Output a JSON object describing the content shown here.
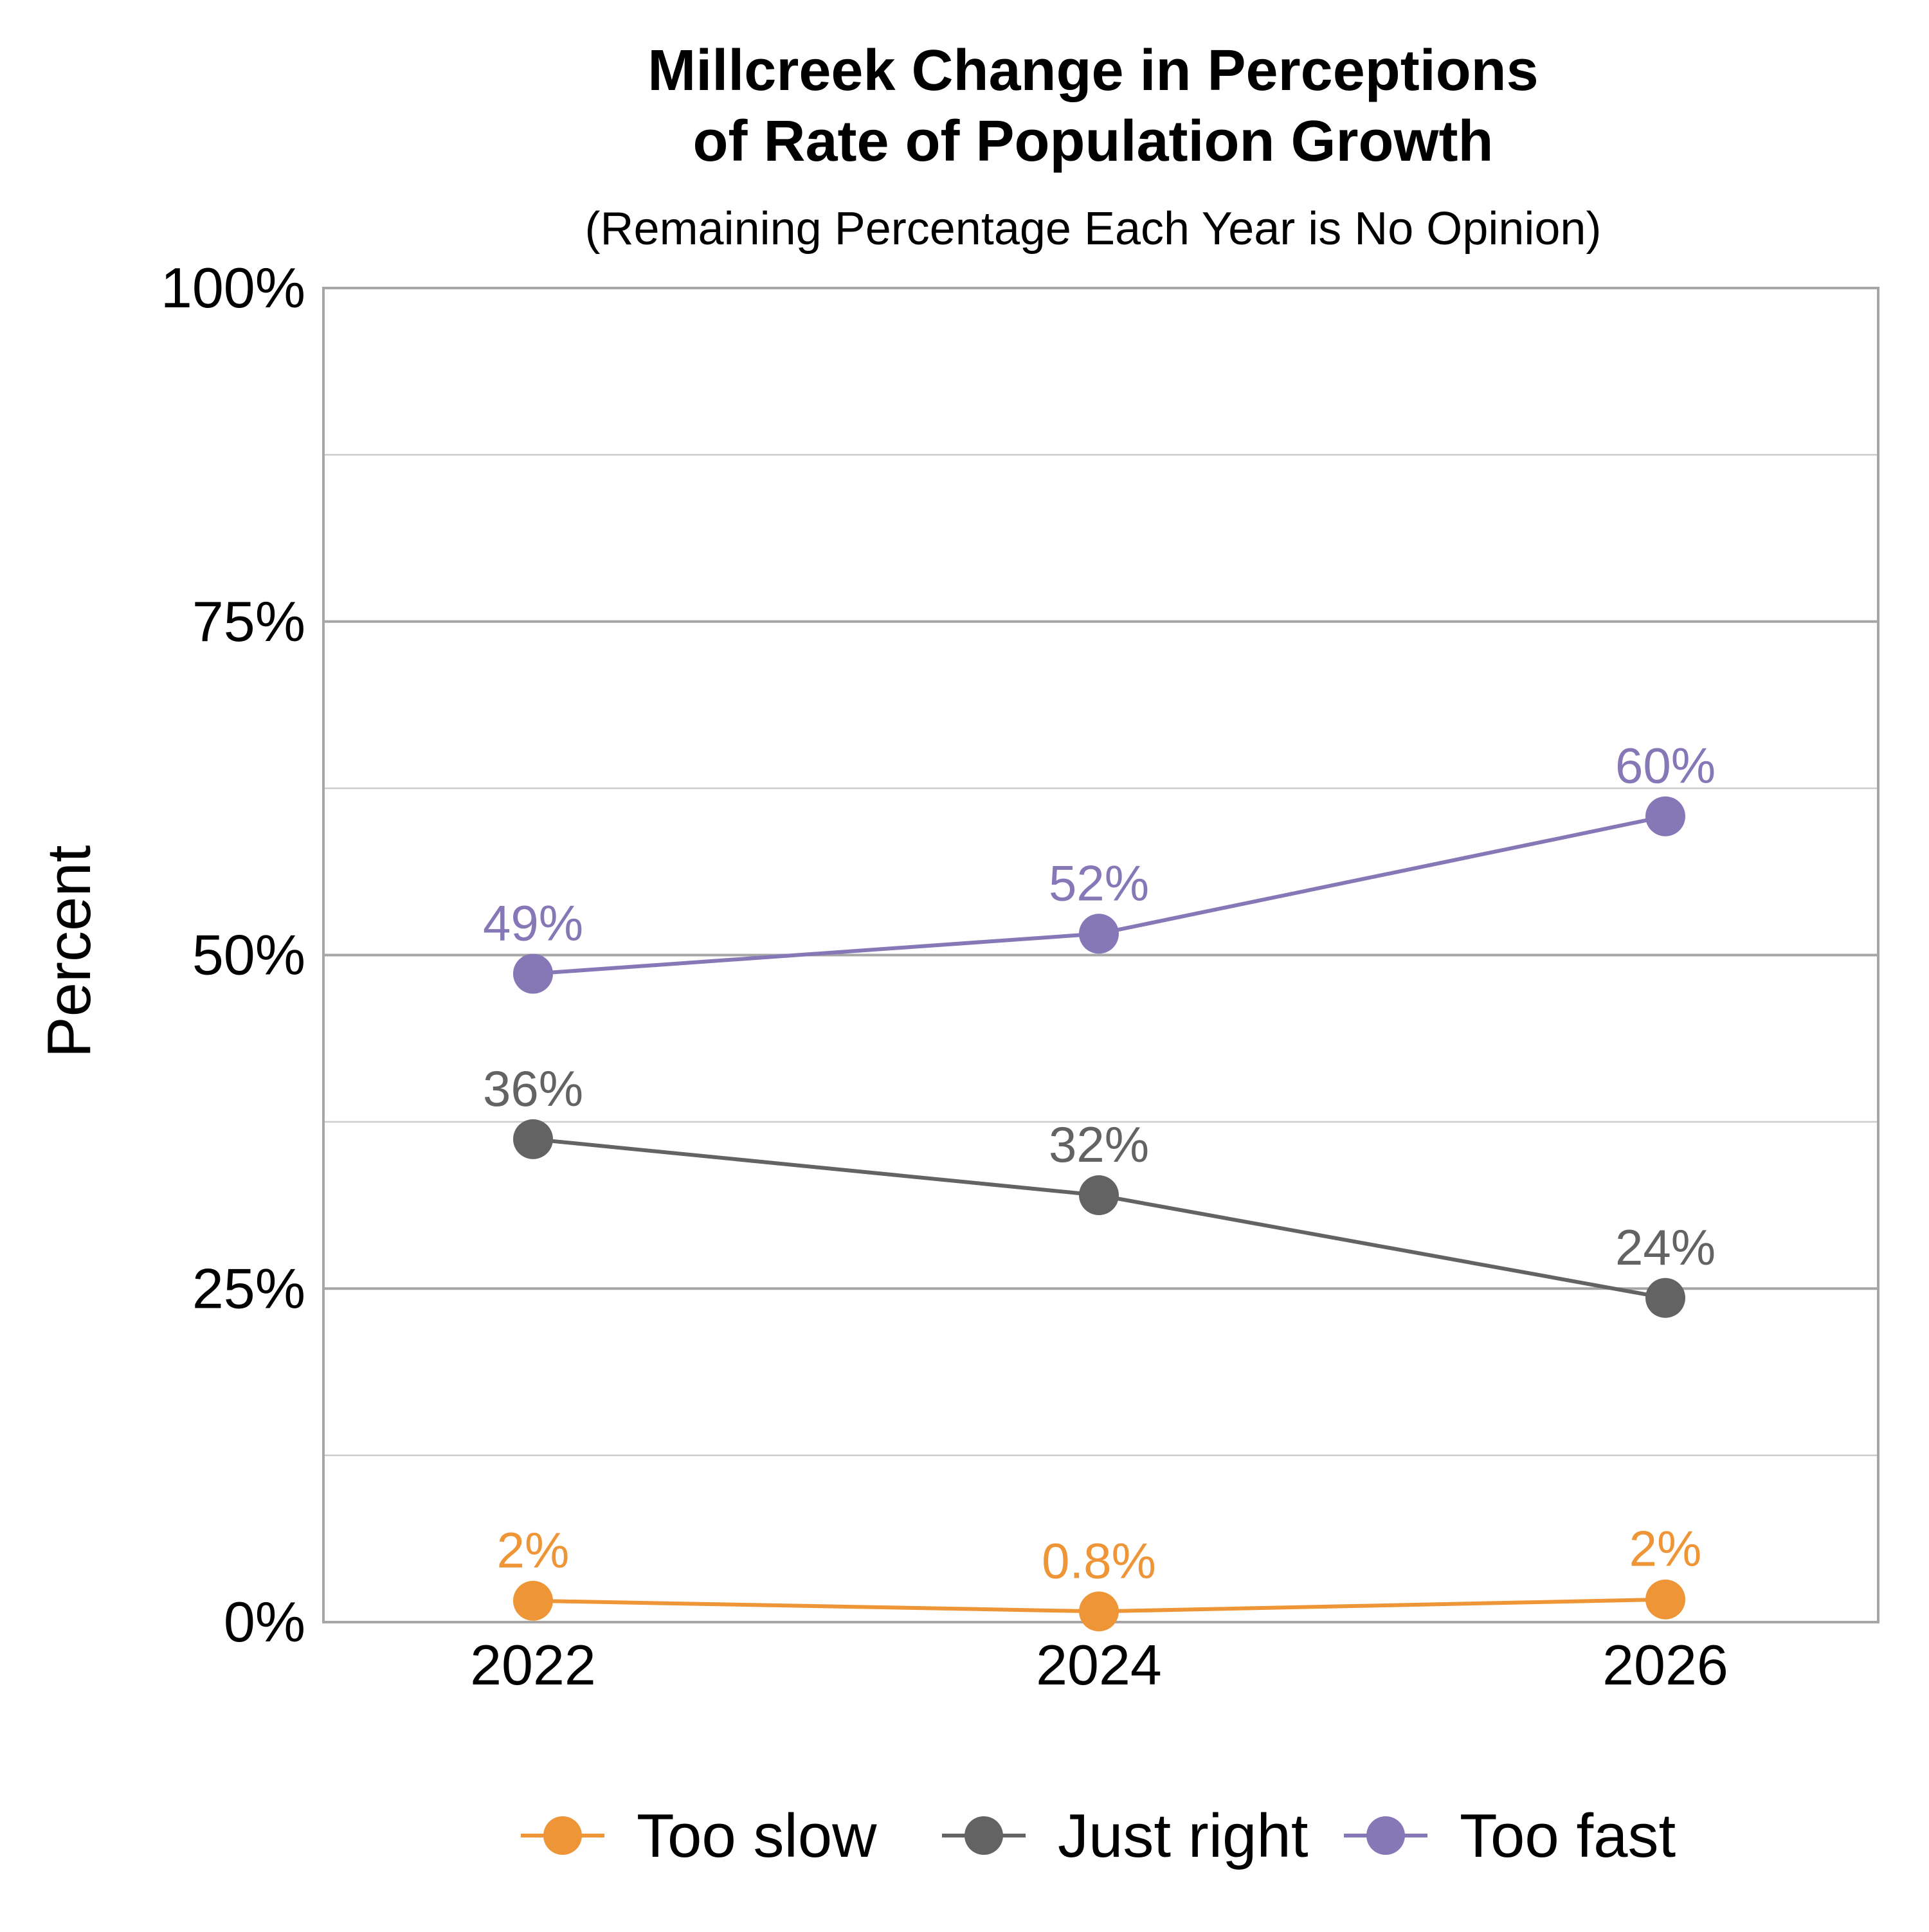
{
  "chart_data": {
    "type": "line",
    "title_lines": [
      "Millcreek Change in Perceptions",
      "of Rate of Population Growth"
    ],
    "subtitle": "(Remaining Percentage Each Year is No Opinion)",
    "ylabel": "Percent",
    "xlabel": "",
    "categories": [
      "2022",
      "2024",
      "2026"
    ],
    "ylim": [
      0,
      100
    ],
    "yticks": [
      0,
      25,
      50,
      75,
      100
    ],
    "ytick_labels": [
      "0%",
      "25%",
      "50%",
      "75%",
      "100%"
    ],
    "grid": true,
    "legend_position": "bottom",
    "series": [
      {
        "name": "Too slow",
        "color": "#ee9637",
        "values": [
          1.6,
          0.8,
          1.7
        ],
        "labels": [
          "2%",
          "0.8%",
          "2%"
        ]
      },
      {
        "name": "Just right",
        "color": "#636363",
        "values": [
          36.2,
          32,
          24.3
        ],
        "labels": [
          "36%",
          "32%",
          "24%"
        ]
      },
      {
        "name": "Too fast",
        "color": "#8677b7",
        "values": [
          48.6,
          51.6,
          60.4
        ],
        "labels": [
          "49%",
          "52%",
          "60%"
        ]
      }
    ]
  }
}
